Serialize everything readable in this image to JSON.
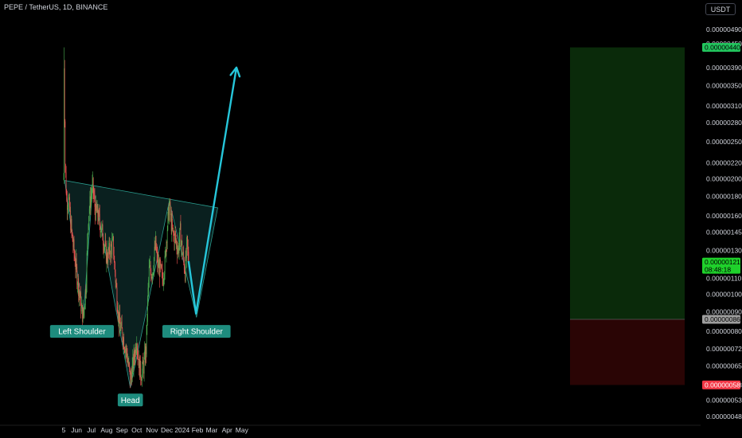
{
  "header": {
    "symbol": "PEPE / TetherUS, 1D, BINANCE",
    "currency_button": "USDT"
  },
  "colors": {
    "background": "#000000",
    "up": "#26a69a",
    "up_bright": "#4caf50",
    "down": "#ef5350",
    "pattern_fill": "#0b2422",
    "pattern_line": "#2a9d8f",
    "arrow": "#26c6da",
    "label_bg": "#1e8c7e",
    "target_zone": "#0a2a0a",
    "stop_zone": "#2a0505"
  },
  "chart_data": {
    "type": "candlestick",
    "title": "PEPE / TetherUS, 1D, BINANCE",
    "y_axis": {
      "scale": "log",
      "ticks": [
        4.9e-06,
        4.5e-06,
        3.9e-06,
        3.5e-06,
        3.1e-06,
        2.8e-06,
        2.5e-06,
        2.2e-06,
        2e-06,
        1.8e-06,
        1.6e-06,
        1.45e-06,
        1.3e-06,
        1.1e-06,
        1e-06,
        9e-07,
        8e-07,
        7.2e-07,
        6.5e-07,
        5.8e-07,
        5.3e-07,
        4.8e-07
      ],
      "tick_labels": [
        "0.00000490",
        "0.00000450",
        "0.00000390",
        "0.00000350",
        "0.00000310",
        "0.00000280",
        "0.00000250",
        "0.00000220",
        "0.00000200",
        "0.00000180",
        "0.00000160",
        "0.00000145",
        "0.00000130",
        "0.00000110",
        "0.00000100",
        "0.00000090",
        "0.00000080",
        "0.00000072",
        "0.00000065",
        "0.00000058",
        "0.00000053",
        "0.00000048"
      ],
      "ylim": [
        4.6e-07,
        5.3e-06
      ]
    },
    "x_axis": {
      "tick_labels": [
        "5",
        "Jun",
        "Jul",
        "Aug",
        "Sep",
        "Oct",
        "Nov",
        "Dec",
        "2024",
        "Feb",
        "Mar",
        "Apr",
        "May"
      ],
      "tick_days": [
        0,
        26,
        56,
        87,
        118,
        148,
        179,
        209,
        240,
        271,
        300,
        331,
        361
      ]
    },
    "price_labels": [
      {
        "value": 4.4e-06,
        "text": "0.00000440",
        "kind": "target"
      },
      {
        "value": 1.21e-06,
        "text": "0.00000121",
        "sub": "08:48:18",
        "kind": "current"
      },
      {
        "value": 8.6e-07,
        "text": "0.00000086",
        "kind": "entry"
      },
      {
        "value": 5.8e-07,
        "text": "0.00000058",
        "kind": "stop"
      }
    ],
    "pattern": {
      "name": "inverse head and shoulders",
      "points": [
        {
          "day": 2,
          "price": 1.98e-06
        },
        {
          "day": 40,
          "price": 8.7e-07
        },
        {
          "day": 59,
          "price": 1.94e-06
        },
        {
          "day": 135,
          "price": 5.7e-07
        },
        {
          "day": 214,
          "price": 1.75e-06
        },
        {
          "day": 269,
          "price": 8.7e-07
        },
        {
          "day": 312,
          "price": 1.68e-06
        }
      ],
      "labels": [
        {
          "text": "Left Shoulder",
          "day": 37,
          "price": 8e-07
        },
        {
          "text": "Head",
          "day": 135,
          "price": 5.3e-07
        },
        {
          "text": "Right Shoulder",
          "day": 269,
          "price": 8e-07
        }
      ]
    },
    "projection": {
      "points": [
        {
          "day": 253,
          "price": 1.22e-06
        },
        {
          "day": 268,
          "price": 8.9e-07
        },
        {
          "day": 350,
          "price": 3.9e-06
        }
      ]
    },
    "position": {
      "start_day": 306,
      "end_day": 370,
      "target": 4.4e-06,
      "entry": 8.6e-07,
      "stop": 5.8e-07
    },
    "candles": []
  }
}
